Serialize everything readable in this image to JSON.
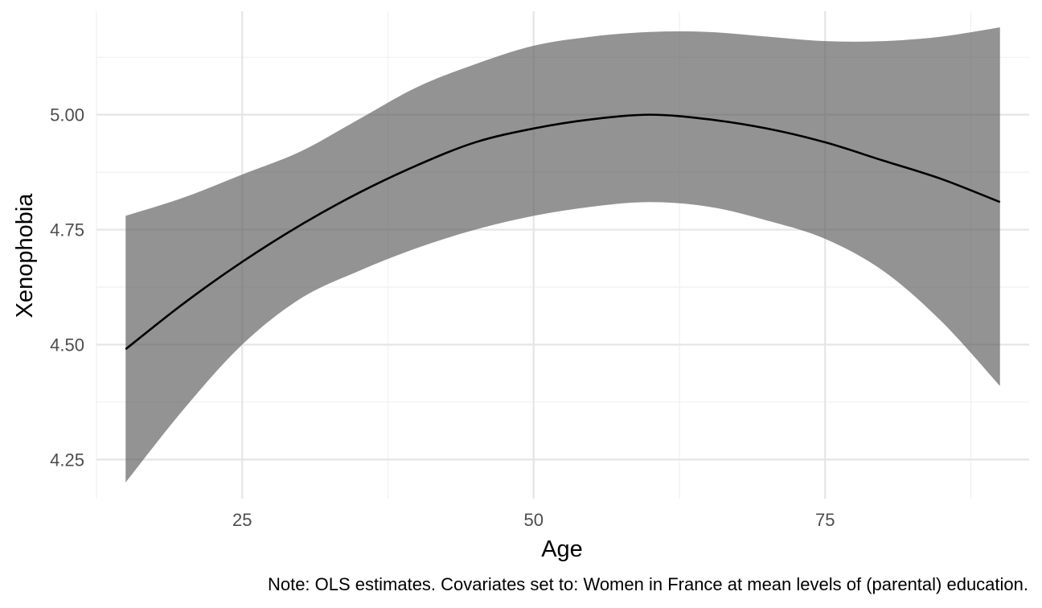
{
  "chart_data": {
    "type": "line",
    "title": "",
    "xlabel": "Age",
    "ylabel": "Xenophobia",
    "caption": "Note: OLS estimates. Covariates set to: Women in France at mean levels of (parental) education.",
    "xlim": [
      12.5,
      92.5
    ],
    "ylim": [
      4.165,
      5.225
    ],
    "x_ticks": [
      25,
      50,
      75
    ],
    "x_tick_labels": [
      "25",
      "50",
      "75"
    ],
    "x_minor_ticks": [
      12.5,
      37.5,
      62.5,
      87.5
    ],
    "y_ticks": [
      4.25,
      4.5,
      4.75,
      5.0
    ],
    "y_tick_labels": [
      "4.25",
      "4.50",
      "4.75",
      "5.00"
    ],
    "y_minor_ticks": [
      4.375,
      4.625,
      4.875,
      5.125
    ],
    "grid": true,
    "series": [
      {
        "x": [
          15,
          20,
          25,
          30,
          35,
          40,
          45,
          50,
          55,
          60,
          65,
          70,
          75,
          80,
          85,
          90
        ],
        "y": [
          4.49,
          4.59,
          4.68,
          4.76,
          4.83,
          4.89,
          4.94,
          4.97,
          4.99,
          5.0,
          4.99,
          4.97,
          4.94,
          4.9,
          4.86,
          4.81
        ],
        "ci_lower": [
          4.2,
          4.36,
          4.5,
          4.6,
          4.66,
          4.71,
          4.75,
          4.78,
          4.8,
          4.81,
          4.8,
          4.77,
          4.73,
          4.66,
          4.55,
          4.41
        ],
        "ci_upper": [
          4.78,
          4.82,
          4.87,
          4.92,
          4.99,
          5.06,
          5.11,
          5.15,
          5.17,
          5.18,
          5.18,
          5.17,
          5.16,
          5.16,
          5.17,
          5.19
        ]
      }
    ],
    "colors": {
      "line": "#000000",
      "ribbon": "#595959",
      "ribbon_opacity": 0.65,
      "grid_major": "#e5e5e5",
      "grid_minor": "#f0f0f0",
      "tick_text": "#4d4d4d"
    }
  }
}
